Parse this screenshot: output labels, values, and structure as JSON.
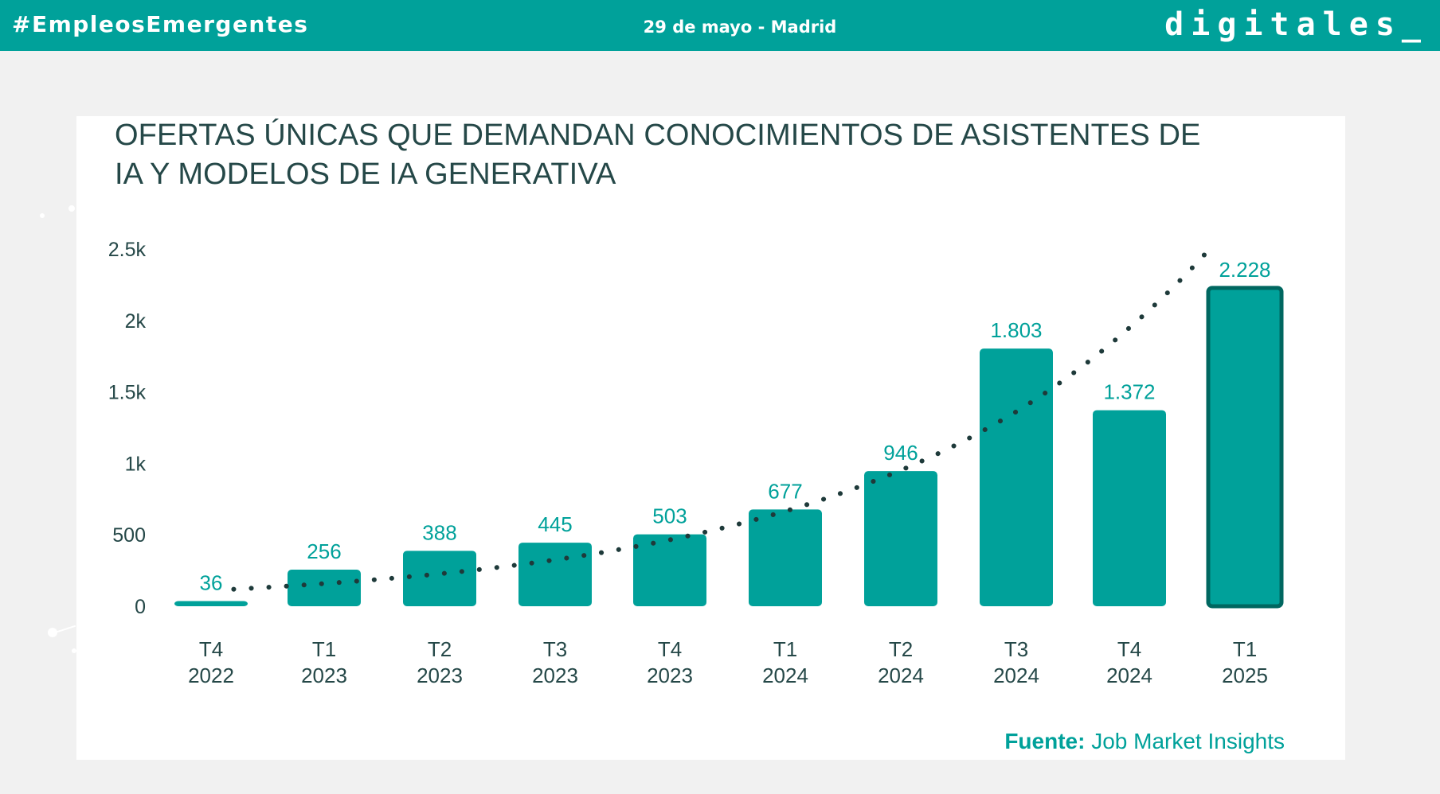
{
  "header": {
    "hashtag": "#EmpleosEmergentes",
    "event": "29 de mayo - Madrid",
    "logo": "digitales_"
  },
  "colors": {
    "brand": "#00a19a",
    "bar": "#00a19a",
    "bar_highlight_border": "#006760",
    "text_dark": "#254848",
    "trend": "#1e3a3a"
  },
  "chart_data": {
    "type": "bar",
    "title_lines": [
      "OFERTAS ÚNICAS QUE DEMANDAN CONOCIMIENTOS DE ASISTENTES DE",
      "IA Y MODELOS DE IA GENERATIVA"
    ],
    "categories": [
      [
        "T4",
        "2022"
      ],
      [
        "T1",
        "2023"
      ],
      [
        "T2",
        "2023"
      ],
      [
        "T3",
        "2023"
      ],
      [
        "T4",
        "2023"
      ],
      [
        "T1",
        "2024"
      ],
      [
        "T2",
        "2024"
      ],
      [
        "T3",
        "2024"
      ],
      [
        "T4",
        "2024"
      ],
      [
        "T1",
        "2025"
      ]
    ],
    "values": [
      36,
      256,
      388,
      445,
      503,
      677,
      946,
      1803,
      1372,
      2228
    ],
    "value_labels": [
      "36",
      "256",
      "388",
      "445",
      "503",
      "677",
      "946",
      "1.803",
      "1.372",
      "2.228"
    ],
    "highlight_index": 9,
    "y_ticks": [
      0,
      500,
      1000,
      1500,
      2000,
      2500
    ],
    "y_tick_labels": [
      "0",
      "500",
      "1k",
      "1.5k",
      "2k",
      "2.5k"
    ],
    "ylim": [
      0,
      2500
    ],
    "trendline": "exponential",
    "grid": false,
    "legend": false
  },
  "source": {
    "label": "Fuente:",
    "text": "Job Market Insights"
  }
}
